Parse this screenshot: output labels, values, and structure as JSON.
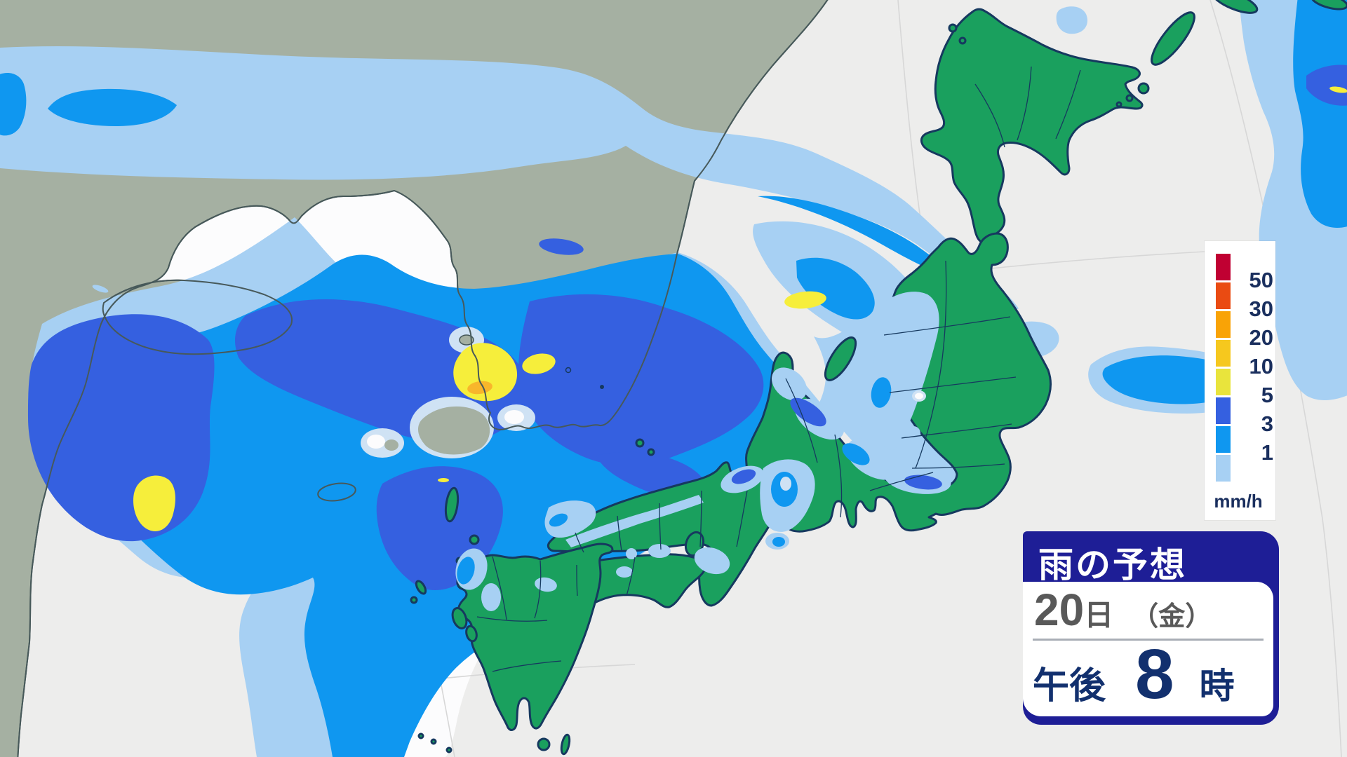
{
  "colors": {
    "sea_background": "#ededec",
    "cloud_white": "#fcfcfd",
    "continent_land": "#a5b0a2",
    "continent_coast": "#47595a",
    "japan_land": "#1aa05e",
    "japan_coast": "#16395f",
    "rain_light_1mm": "#a7d0f3",
    "rain_mid_3mm": "#0f97f0",
    "rain_royal_5mm": "#3560e0",
    "rain_pale_ring": "#cfe2f4",
    "rain_yellow_10mm": "#f6ee3b",
    "rain_amber_20mm": "#f8b62b",
    "legend_text": "#1a2f5e",
    "panel_navy": "#1e1e96",
    "date_gray": "#595959",
    "time_navy": "#12306e",
    "graticule": "#d7d7d7"
  },
  "legend": {
    "unit": "mm/h",
    "items": [
      {
        "label": "50",
        "color": "#c00032"
      },
      {
        "label": "30",
        "color": "#ea4b12"
      },
      {
        "label": "20",
        "color": "#f9a306"
      },
      {
        "label": "10",
        "color": "#f6c81e"
      },
      {
        "label": "5",
        "color": "#e9e43c"
      },
      {
        "label": "3",
        "color": "#3560e0"
      },
      {
        "label": "1",
        "color": "#0f97f0"
      },
      {
        "label": "",
        "color": "#a7d0f3"
      }
    ]
  },
  "info_box": {
    "title": "雨の予想",
    "day": "20",
    "day_suffix": "日",
    "weekday": "（金）",
    "period": "午後",
    "hour": "8",
    "hour_suffix": "時"
  }
}
